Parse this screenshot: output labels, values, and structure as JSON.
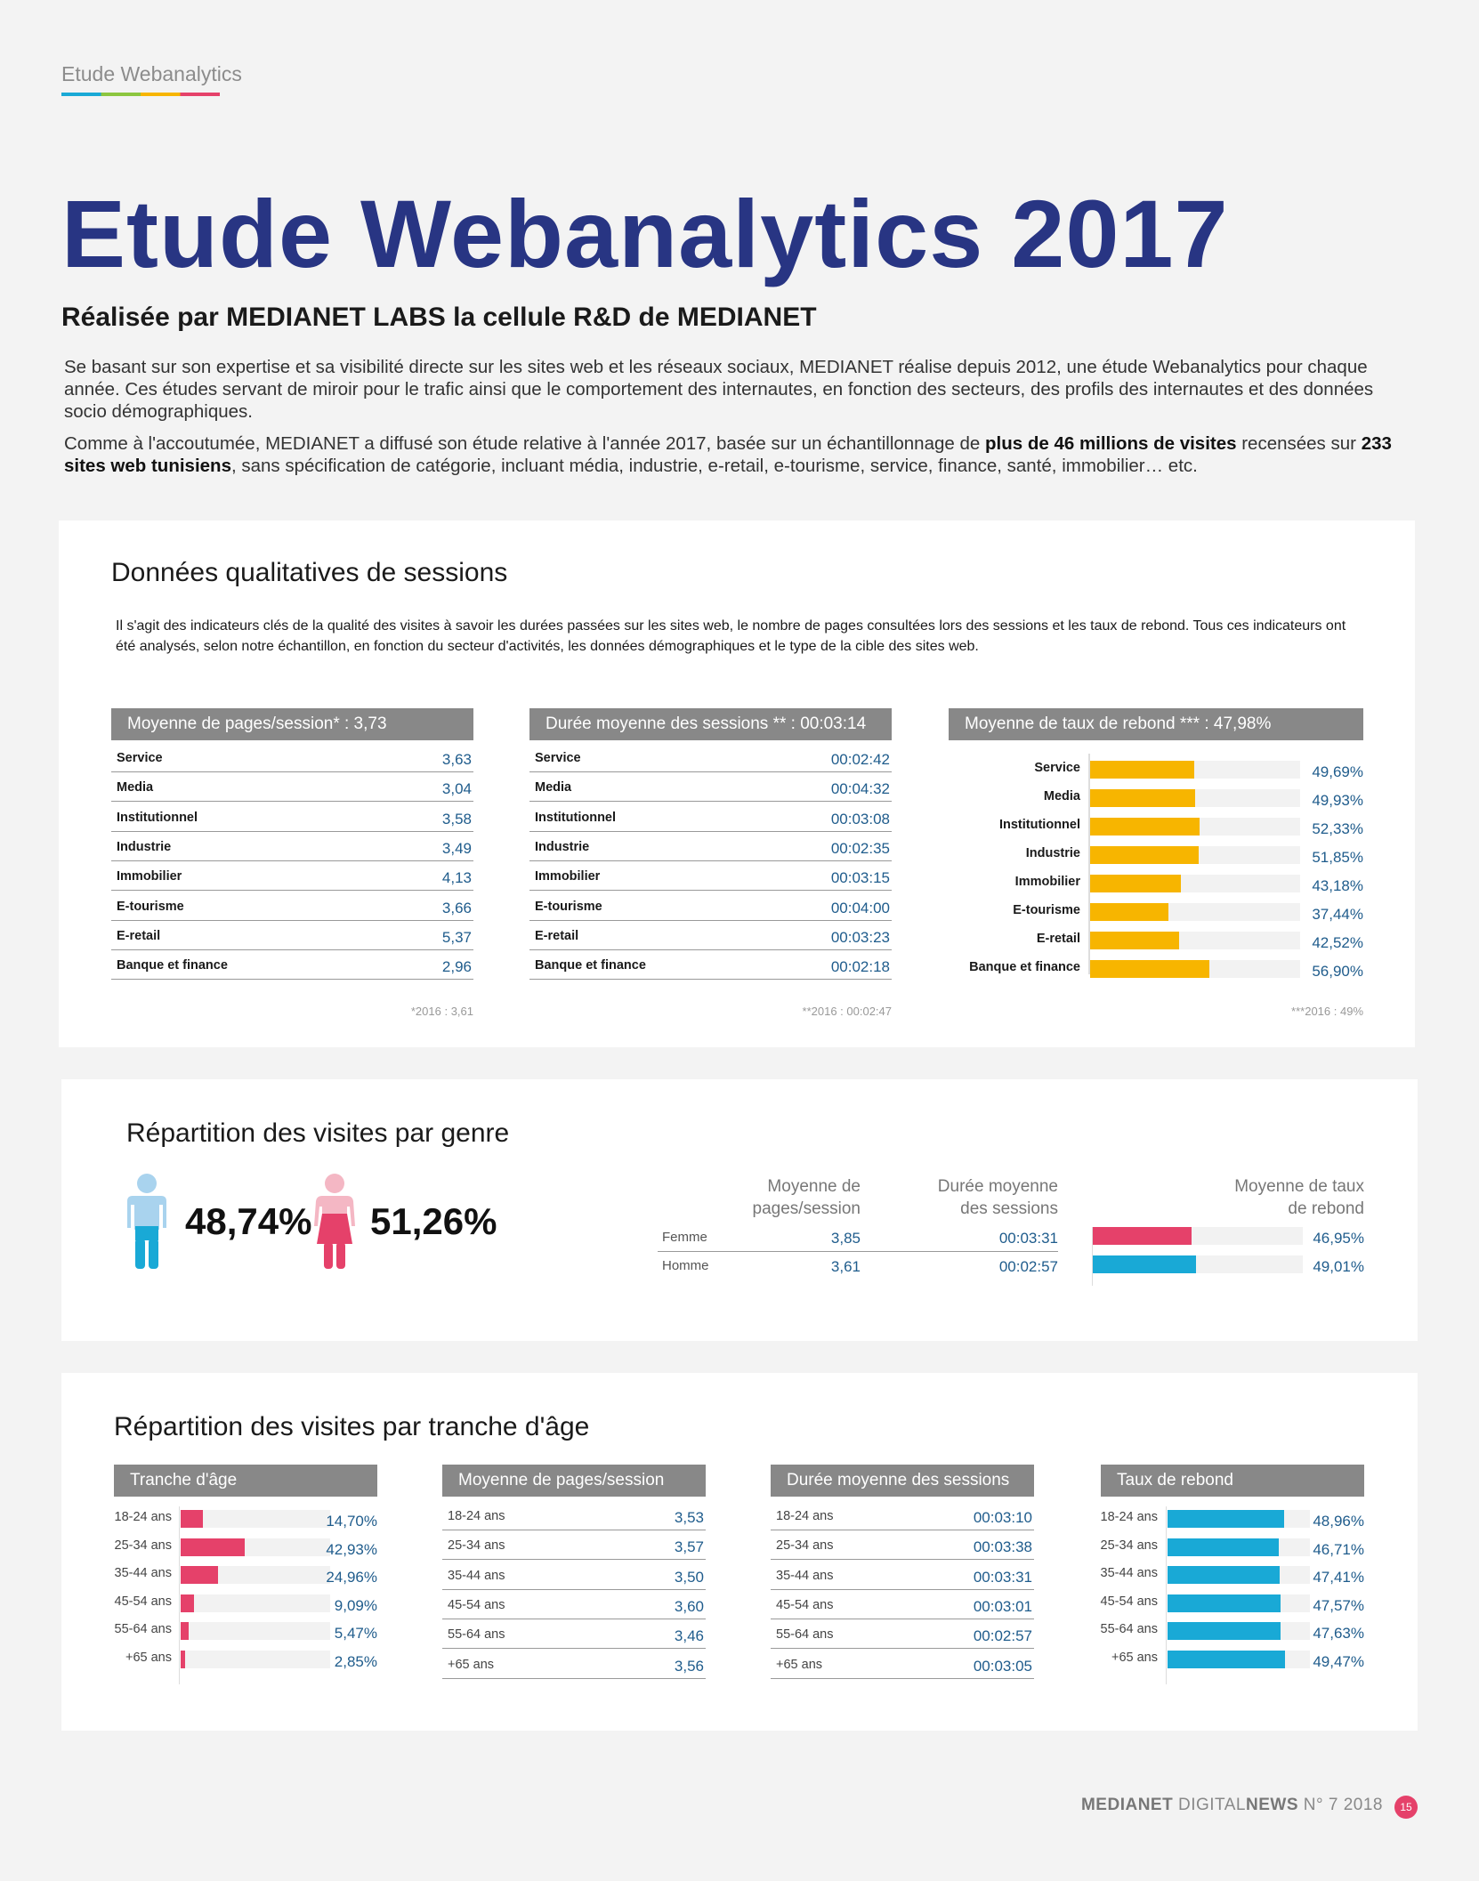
{
  "header": {
    "kicker": "Etude Webanalytics"
  },
  "title": "Etude Webanalytics 2017",
  "subtitle": "Réalisée par MEDIANET LABS la cellule R&D de MEDIANET",
  "intro_p1": "Se basant sur son expertise et sa visibilité directe sur les sites web et les réseaux sociaux, MEDIANET réalise depuis 2012, une étude Webanalytics pour chaque année. Ces études servant de miroir pour le trafic ainsi que le comportement des internautes, en fonction des secteurs, des profils des internautes et des données socio démographiques.",
  "intro_p2": {
    "a": "Comme à l'accoutumée, MEDIANET a diffusé son étude relative à l'année 2017, basée sur un échantillonnage de ",
    "b": "plus de 46 millions de visites",
    "c": " recensées sur ",
    "d": "233 sites web tunisiens",
    "e": ", sans spécification de catégorie, incluant média, industrie, e-retail, e-tourisme, service, finance, santé, immobilier… etc."
  },
  "sessions": {
    "title": "Données qualitatives de sessions",
    "desc": "Il s'agit des indicateurs clés de la qualité des visites à savoir les durées passées sur les sites web, le nombre de pages consultées lors des sessions et les taux de rebond. Tous ces indicateurs ont été analysés, selon notre échantillon, en fonction du secteur d'activités, les données démographiques et le type de la cible des sites web.",
    "pages": {
      "header": "Moyenne de pages/session* : 3,73",
      "rows": [
        [
          "Service",
          "3,63"
        ],
        [
          "Media",
          "3,04"
        ],
        [
          "Institutionnel",
          "3,58"
        ],
        [
          "Industrie",
          "3,49"
        ],
        [
          "Immobilier",
          "4,13"
        ],
        [
          "E-tourisme",
          "3,66"
        ],
        [
          "E-retail",
          "5,37"
        ],
        [
          "Banque et finance",
          "2,96"
        ]
      ],
      "note": "*2016 : 3,61"
    },
    "duration": {
      "header": "Durée moyenne des sessions ** : 00:03:14",
      "rows": [
        [
          "Service",
          "00:02:42"
        ],
        [
          "Media",
          "00:04:32"
        ],
        [
          "Institutionnel",
          "00:03:08"
        ],
        [
          "Industrie",
          "00:02:35"
        ],
        [
          "Immobilier",
          "00:03:15"
        ],
        [
          "E-tourisme",
          "00:04:00"
        ],
        [
          "E-retail",
          "00:03:23"
        ],
        [
          "Banque et finance",
          "00:02:18"
        ]
      ],
      "note": "**2016 : 00:02:47"
    },
    "bounce": {
      "header": "Moyenne de taux de rebond *** : 47,98%",
      "color": "#f7b500",
      "rows": [
        [
          "Service",
          "49,69%",
          49.69
        ],
        [
          "Media",
          "49,93%",
          49.93
        ],
        [
          "Institutionnel",
          "52,33%",
          52.33
        ],
        [
          "Industrie",
          "51,85%",
          51.85
        ],
        [
          "Immobilier",
          "43,18%",
          43.18
        ],
        [
          "E-tourisme",
          "37,44%",
          37.44
        ],
        [
          "E-retail",
          "42,52%",
          42.52
        ],
        [
          "Banque et finance",
          "56,90%",
          56.9
        ]
      ],
      "note": "***2016 : 49%"
    }
  },
  "gender": {
    "title": "Répartition des visites par genre",
    "male_pct": "48,74%",
    "female_pct": "51,26%",
    "col_pages": "Moyenne de pages/session",
    "col_duration": "Durée moyenne des sessions",
    "col_bounce": "Moyenne de taux de rebond",
    "rows": [
      {
        "label": "Femme",
        "pages": "3,85",
        "duration": "00:03:31",
        "bounce": "46,95%",
        "value": 46.95,
        "color": "#e5416a"
      },
      {
        "label": "Homme",
        "pages": "3,61",
        "duration": "00:02:57",
        "bounce": "49,01%",
        "value": 49.01,
        "color": "#19a9d6"
      }
    ]
  },
  "age": {
    "title": "Répartition des visites par tranche d'âge",
    "share": {
      "header": "Tranche d'âge",
      "color": "#e5416a",
      "rows": [
        [
          "18-24 ans",
          "14,70%",
          14.7
        ],
        [
          "25-34 ans",
          "42,93%",
          42.93
        ],
        [
          "35-44 ans",
          "24,96%",
          24.96
        ],
        [
          "45-54 ans",
          "9,09%",
          9.09
        ],
        [
          "55-64 ans",
          "5,47%",
          5.47
        ],
        [
          "+65 ans",
          "2,85%",
          2.85
        ]
      ]
    },
    "pages": {
      "header": "Moyenne de pages/session",
      "rows": [
        [
          "18-24 ans",
          "3,53"
        ],
        [
          "25-34 ans",
          "3,57"
        ],
        [
          "35-44 ans",
          "3,50"
        ],
        [
          "45-54 ans",
          "3,60"
        ],
        [
          "55-64 ans",
          "3,46"
        ],
        [
          "+65 ans",
          "3,56"
        ]
      ]
    },
    "duration": {
      "header": "Durée moyenne des sessions",
      "rows": [
        [
          "18-24 ans",
          "00:03:10"
        ],
        [
          "25-34 ans",
          "00:03:38"
        ],
        [
          "35-44 ans",
          "00:03:31"
        ],
        [
          "45-54 ans",
          "00:03:01"
        ],
        [
          "55-64 ans",
          "00:02:57"
        ],
        [
          "+65 ans",
          "00:03:05"
        ]
      ]
    },
    "bounce": {
      "header": "Taux de rebond",
      "color": "#19a9d6",
      "rows": [
        [
          "18-24 ans",
          "48,96%",
          48.96
        ],
        [
          "25-34 ans",
          "46,71%",
          46.71
        ],
        [
          "35-44 ans",
          "47,41%",
          47.41
        ],
        [
          "45-54 ans",
          "47,57%",
          47.57
        ],
        [
          "55-64 ans",
          "47,63%",
          47.63
        ],
        [
          "+65 ans",
          "49,47%",
          49.47
        ]
      ]
    }
  },
  "footer": {
    "brand_a": "MEDIANET",
    "brand_b": " DIGITAL",
    "brand_c": "NEWS",
    "issue": " N° 7 2018",
    "page": "15"
  }
}
